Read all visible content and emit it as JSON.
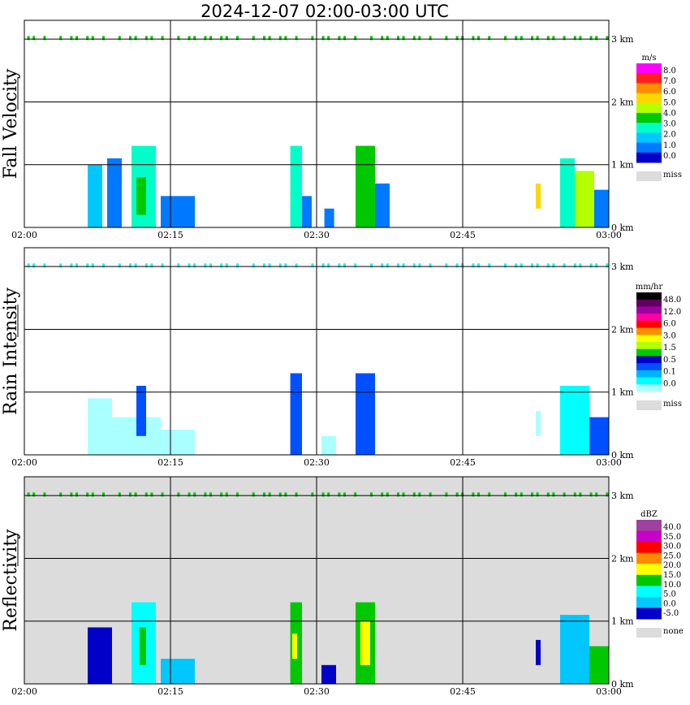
{
  "title": "2024-12-07   02:00-03:00 UTC",
  "colors": {
    "miss": "#dcdcdc",
    "grid": "#000000"
  },
  "chart_data": [
    {
      "type": "heatmap",
      "id": "fall-velocity",
      "ylabel": "Fall Velocity",
      "x_ticks": [
        "02:00",
        "02:15",
        "02:30",
        "02:45",
        "03:00"
      ],
      "x_range_min": [
        0,
        60
      ],
      "y_ticks": [
        "0 km",
        "1 km",
        "2 km",
        "3 km"
      ],
      "y_range_km": [
        0,
        3.3
      ],
      "background": "#ffffff",
      "legend": {
        "unit": "m/s",
        "labels": [
          "8.0",
          "7.0",
          "6.0",
          "5.0",
          "4.0",
          "3.0",
          "2.0",
          "1.0",
          "0.0"
        ],
        "colors": [
          "#ff00ff",
          "#ff2020",
          "#ff8c00",
          "#ffd700",
          "#b4ff00",
          "#00c800",
          "#00ffc8",
          "#00c8ff",
          "#0078ff",
          "#0000c8"
        ],
        "miss_label": "miss"
      },
      "cells": [
        {
          "t0": 6.5,
          "t1": 8.0,
          "h0": 0.0,
          "h1": 1.0,
          "color": "#00c8ff"
        },
        {
          "t0": 8.5,
          "t1": 10.0,
          "h0": 0.0,
          "h1": 1.1,
          "color": "#0078ff"
        },
        {
          "t0": 11.0,
          "t1": 13.5,
          "h0": 0.0,
          "h1": 1.3,
          "color": "#00ffc8"
        },
        {
          "t0": 11.5,
          "t1": 12.5,
          "h0": 0.2,
          "h1": 0.8,
          "color": "#00c800"
        },
        {
          "t0": 14.0,
          "t1": 17.5,
          "h0": 0.0,
          "h1": 0.5,
          "color": "#0078ff"
        },
        {
          "t0": 27.3,
          "t1": 28.5,
          "h0": 0.0,
          "h1": 1.3,
          "color": "#00ffc8"
        },
        {
          "t0": 28.5,
          "t1": 29.5,
          "h0": 0.0,
          "h1": 0.5,
          "color": "#0078ff"
        },
        {
          "t0": 30.8,
          "t1": 31.8,
          "h0": 0.0,
          "h1": 0.3,
          "color": "#0078ff"
        },
        {
          "t0": 34.0,
          "t1": 36.0,
          "h0": 0.0,
          "h1": 1.3,
          "color": "#00c800"
        },
        {
          "t0": 36.0,
          "t1": 37.5,
          "h0": 0.0,
          "h1": 0.7,
          "color": "#0078ff"
        },
        {
          "t0": 52.5,
          "t1": 53.0,
          "h0": 0.3,
          "h1": 0.7,
          "color": "#ffd700"
        },
        {
          "t0": 55.0,
          "t1": 56.5,
          "h0": 0.0,
          "h1": 1.1,
          "color": "#00ffc8"
        },
        {
          "t0": 56.5,
          "t1": 58.5,
          "h0": 0.0,
          "h1": 0.9,
          "color": "#b4ff00"
        },
        {
          "t0": 58.5,
          "t1": 60.0,
          "h0": 0.0,
          "h1": 0.6,
          "color": "#0078ff"
        }
      ]
    },
    {
      "type": "heatmap",
      "id": "rain-intensity",
      "ylabel": "Rain Intensity",
      "x_ticks": [
        "02:00",
        "02:15",
        "02:30",
        "02:45",
        "03:00"
      ],
      "x_range_min": [
        0,
        60
      ],
      "y_ticks": [
        "0 km",
        "1 km",
        "2 km",
        "3 km"
      ],
      "y_range_km": [
        0,
        3.3
      ],
      "background": "#ffffff",
      "legend": {
        "unit": "mm/hr",
        "labels": [
          "48.0",
          "12.0",
          "6.0",
          "3.0",
          "1.5",
          "0.5",
          "0.1",
          "0.0"
        ],
        "colors": [
          "#000000",
          "#600060",
          "#a000a0",
          "#ff00a0",
          "#ff0000",
          "#ff8c00",
          "#ffff00",
          "#b4ff00",
          "#00c800",
          "#0000c8",
          "#0050ff",
          "#00b4ff",
          "#00ffff",
          "#aaffff"
        ],
        "miss_label": "miss"
      },
      "cells": [
        {
          "t0": 6.5,
          "t1": 9.0,
          "h0": 0.0,
          "h1": 0.9,
          "color": "#aaffff"
        },
        {
          "t0": 9.0,
          "t1": 14.0,
          "h0": 0.0,
          "h1": 0.6,
          "color": "#aaffff"
        },
        {
          "t0": 11.5,
          "t1": 12.5,
          "h0": 0.3,
          "h1": 1.1,
          "color": "#0050ff"
        },
        {
          "t0": 14.0,
          "t1": 17.5,
          "h0": 0.0,
          "h1": 0.4,
          "color": "#aaffff"
        },
        {
          "t0": 27.3,
          "t1": 28.5,
          "h0": 0.0,
          "h1": 1.3,
          "color": "#0050ff"
        },
        {
          "t0": 30.5,
          "t1": 32.0,
          "h0": 0.0,
          "h1": 0.3,
          "color": "#aaffff"
        },
        {
          "t0": 34.0,
          "t1": 36.0,
          "h0": 0.0,
          "h1": 1.3,
          "color": "#0050ff"
        },
        {
          "t0": 52.5,
          "t1": 53.0,
          "h0": 0.3,
          "h1": 0.7,
          "color": "#aaffff"
        },
        {
          "t0": 55.0,
          "t1": 58.0,
          "h0": 0.0,
          "h1": 1.1,
          "color": "#00ffff"
        },
        {
          "t0": 58.0,
          "t1": 60.0,
          "h0": 0.0,
          "h1": 0.6,
          "color": "#0050ff"
        }
      ]
    },
    {
      "type": "heatmap",
      "id": "reflectivity",
      "ylabel": "Reflectivity",
      "x_ticks": [
        "02:00",
        "02:15",
        "02:30",
        "02:45",
        "03:00"
      ],
      "x_range_min": [
        0,
        60
      ],
      "y_ticks": [
        "0 km",
        "1 km",
        "2 km",
        "3 km"
      ],
      "y_range_km": [
        0,
        3.3
      ],
      "background": "#dcdcdc",
      "legend": {
        "unit": "dBZ",
        "labels": [
          "40.0",
          "35.0",
          "30.0",
          "25.0",
          "20.0",
          "15.0",
          "10.0",
          "5.0",
          "0.0",
          "-5.0"
        ],
        "colors": [
          "#a040a0",
          "#c800c8",
          "#ff0000",
          "#ff8c00",
          "#ffff00",
          "#00c800",
          "#00ffff",
          "#00c8ff",
          "#0000c8"
        ],
        "miss_label": "none"
      },
      "cells": [
        {
          "t0": 6.5,
          "t1": 9.0,
          "h0": 0.0,
          "h1": 0.9,
          "color": "#0000c8"
        },
        {
          "t0": 11.0,
          "t1": 13.5,
          "h0": 0.0,
          "h1": 1.3,
          "color": "#00ffff"
        },
        {
          "t0": 11.8,
          "t1": 12.5,
          "h0": 0.3,
          "h1": 0.9,
          "color": "#00c800"
        },
        {
          "t0": 14.0,
          "t1": 17.5,
          "h0": 0.0,
          "h1": 0.4,
          "color": "#00c8ff"
        },
        {
          "t0": 27.3,
          "t1": 28.5,
          "h0": 0.0,
          "h1": 1.3,
          "color": "#00c800"
        },
        {
          "t0": 27.5,
          "t1": 28.0,
          "h0": 0.4,
          "h1": 0.8,
          "color": "#ffff00"
        },
        {
          "t0": 30.5,
          "t1": 32.0,
          "h0": 0.0,
          "h1": 0.3,
          "color": "#0000c8"
        },
        {
          "t0": 34.0,
          "t1": 36.0,
          "h0": 0.0,
          "h1": 1.3,
          "color": "#00c800"
        },
        {
          "t0": 34.5,
          "t1": 35.5,
          "h0": 0.3,
          "h1": 1.0,
          "color": "#ffff00"
        },
        {
          "t0": 52.5,
          "t1": 53.0,
          "h0": 0.3,
          "h1": 0.7,
          "color": "#0000c8"
        },
        {
          "t0": 55.0,
          "t1": 58.0,
          "h0": 0.0,
          "h1": 1.1,
          "color": "#00c8ff"
        },
        {
          "t0": 58.0,
          "t1": 60.0,
          "h0": 0.0,
          "h1": 0.6,
          "color": "#00c800"
        }
      ]
    }
  ]
}
